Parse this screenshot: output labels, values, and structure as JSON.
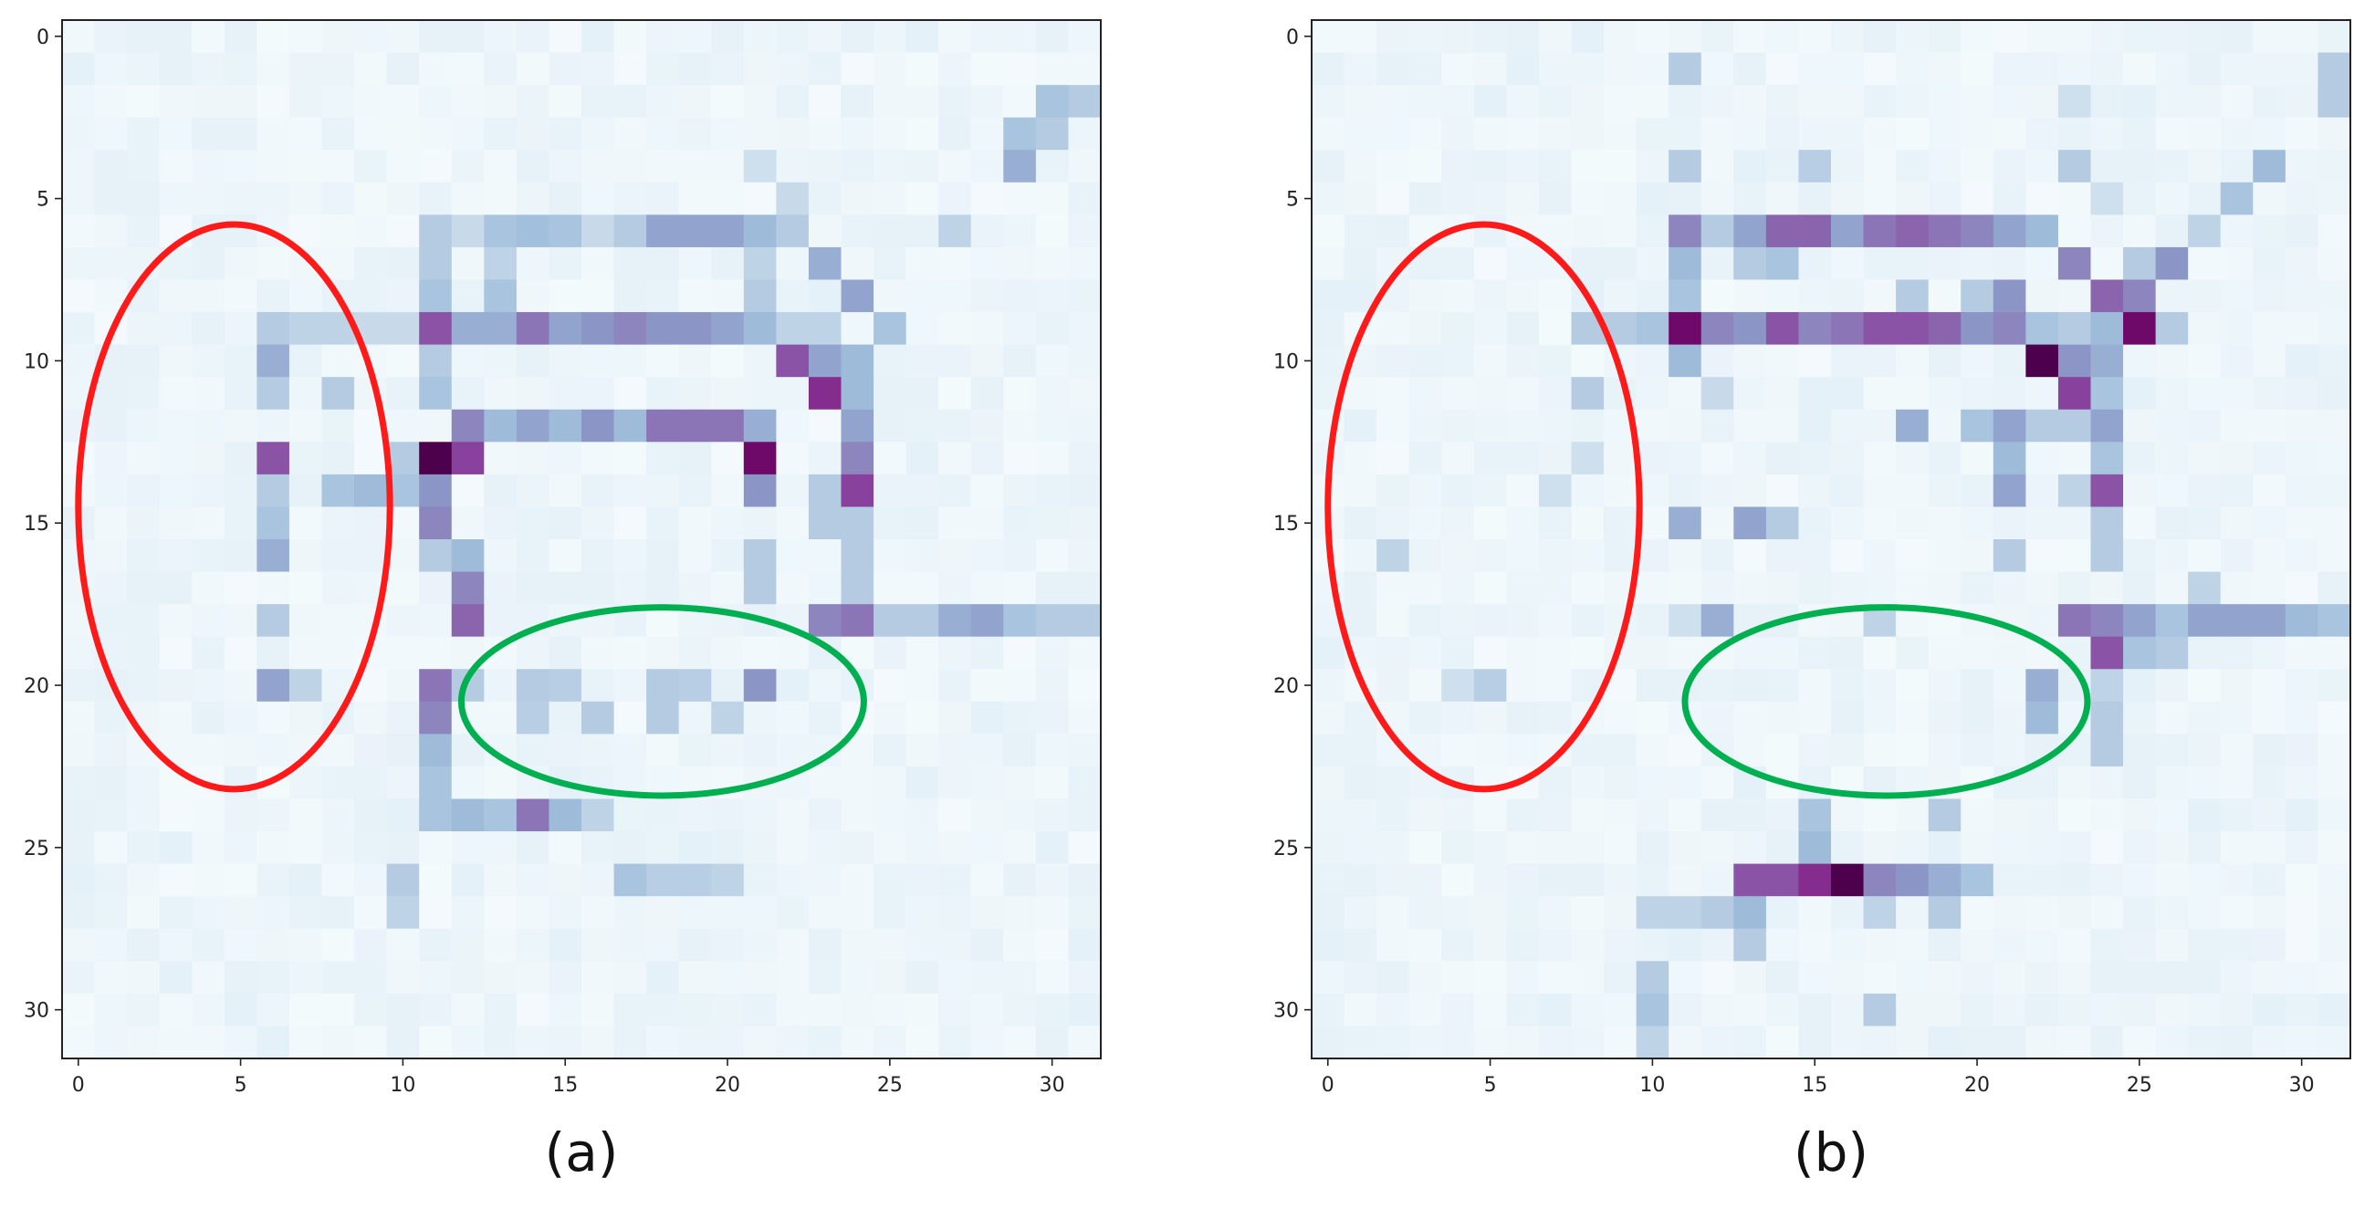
{
  "chart_data": [
    {
      "type": "heatmap",
      "panel_label": "(a)",
      "grid_size": [
        32,
        32
      ],
      "colormap": "BuPu",
      "value_range": [
        0,
        1
      ],
      "background_level": 0.06,
      "x_ticks": [
        0,
        5,
        10,
        15,
        20,
        25,
        30
      ],
      "y_ticks": [
        0,
        5,
        10,
        15,
        20,
        25,
        30
      ],
      "xlim": [
        -0.5,
        31.5
      ],
      "ylim": [
        31.5,
        -0.5
      ],
      "cells": [
        [
          30,
          2,
          0.35
        ],
        [
          31,
          2,
          0.3
        ],
        [
          29,
          3,
          0.35
        ],
        [
          29,
          4,
          0.45
        ],
        [
          30,
          3,
          0.3
        ],
        [
          21,
          4,
          0.2
        ],
        [
          22,
          5,
          0.22
        ],
        [
          27,
          6,
          0.25
        ],
        [
          11,
          6,
          0.3
        ],
        [
          12,
          6,
          0.22
        ],
        [
          13,
          6,
          0.35
        ],
        [
          14,
          6,
          0.38
        ],
        [
          15,
          6,
          0.35
        ],
        [
          16,
          6,
          0.22
        ],
        [
          17,
          6,
          0.3
        ],
        [
          18,
          6,
          0.5
        ],
        [
          19,
          6,
          0.5
        ],
        [
          20,
          6,
          0.5
        ],
        [
          21,
          6,
          0.4
        ],
        [
          22,
          6,
          0.3
        ],
        [
          23,
          7,
          0.45
        ],
        [
          24,
          8,
          0.5
        ],
        [
          11,
          7,
          0.3
        ],
        [
          11,
          8,
          0.35
        ],
        [
          13,
          7,
          0.25
        ],
        [
          13,
          8,
          0.35
        ],
        [
          21,
          7,
          0.25
        ],
        [
          21,
          8,
          0.3
        ],
        [
          6,
          9,
          0.3
        ],
        [
          7,
          9,
          0.25
        ],
        [
          8,
          9,
          0.25
        ],
        [
          9,
          9,
          0.22
        ],
        [
          10,
          9,
          0.22
        ],
        [
          11,
          9,
          0.75
        ],
        [
          12,
          9,
          0.45
        ],
        [
          13,
          9,
          0.45
        ],
        [
          14,
          9,
          0.65
        ],
        [
          15,
          9,
          0.5
        ],
        [
          16,
          9,
          0.55
        ],
        [
          17,
          9,
          0.6
        ],
        [
          18,
          9,
          0.55
        ],
        [
          19,
          9,
          0.55
        ],
        [
          20,
          9,
          0.5
        ],
        [
          21,
          9,
          0.4
        ],
        [
          22,
          9,
          0.25
        ],
        [
          23,
          9,
          0.25
        ],
        [
          25,
          9,
          0.35
        ],
        [
          22,
          10,
          0.75
        ],
        [
          23,
          10,
          0.5
        ],
        [
          24,
          10,
          0.4
        ],
        [
          23,
          11,
          0.85
        ],
        [
          24,
          11,
          0.4
        ],
        [
          6,
          10,
          0.45
        ],
        [
          6,
          11,
          0.3
        ],
        [
          8,
          11,
          0.3
        ],
        [
          11,
          10,
          0.3
        ],
        [
          11,
          11,
          0.35
        ],
        [
          12,
          12,
          0.6
        ],
        [
          13,
          12,
          0.4
        ],
        [
          14,
          12,
          0.5
        ],
        [
          15,
          12,
          0.4
        ],
        [
          16,
          12,
          0.55
        ],
        [
          17,
          12,
          0.4
        ],
        [
          18,
          12,
          0.65
        ],
        [
          19,
          12,
          0.65
        ],
        [
          20,
          12,
          0.65
        ],
        [
          21,
          12,
          0.45
        ],
        [
          24,
          12,
          0.5
        ],
        [
          6,
          13,
          0.75
        ],
        [
          10,
          13,
          0.3
        ],
        [
          11,
          13,
          1.0
        ],
        [
          12,
          13,
          0.8
        ],
        [
          21,
          13,
          0.95
        ],
        [
          24,
          13,
          0.6
        ],
        [
          8,
          14,
          0.35
        ],
        [
          9,
          14,
          0.4
        ],
        [
          10,
          14,
          0.35
        ],
        [
          11,
          14,
          0.55
        ],
        [
          21,
          14,
          0.55
        ],
        [
          24,
          14,
          0.8
        ],
        [
          6,
          14,
          0.3
        ],
        [
          6,
          15,
          0.35
        ],
        [
          11,
          15,
          0.6
        ],
        [
          6,
          16,
          0.45
        ],
        [
          11,
          16,
          0.3
        ],
        [
          12,
          16,
          0.4
        ],
        [
          12,
          17,
          0.6
        ],
        [
          12,
          18,
          0.7
        ],
        [
          6,
          18,
          0.3
        ],
        [
          21,
          16,
          0.3
        ],
        [
          21,
          17,
          0.3
        ],
        [
          23,
          18,
          0.6
        ],
        [
          24,
          18,
          0.65
        ],
        [
          25,
          18,
          0.3
        ],
        [
          26,
          18,
          0.3
        ],
        [
          27,
          18,
          0.45
        ],
        [
          28,
          18,
          0.5
        ],
        [
          29,
          18,
          0.35
        ],
        [
          30,
          18,
          0.3
        ],
        [
          31,
          18,
          0.3
        ],
        [
          6,
          20,
          0.5
        ],
        [
          7,
          20,
          0.25
        ],
        [
          11,
          20,
          0.65
        ],
        [
          12,
          20,
          0.3
        ],
        [
          21,
          20,
          0.55
        ],
        [
          11,
          21,
          0.6
        ],
        [
          11,
          22,
          0.4
        ],
        [
          11,
          23,
          0.35
        ],
        [
          11,
          24,
          0.35
        ],
        [
          12,
          24,
          0.4
        ],
        [
          13,
          24,
          0.35
        ],
        [
          14,
          24,
          0.65
        ],
        [
          15,
          24,
          0.4
        ],
        [
          16,
          24,
          0.25
        ],
        [
          14,
          20,
          0.3
        ],
        [
          15,
          20,
          0.28
        ],
        [
          18,
          20,
          0.3
        ],
        [
          19,
          20,
          0.28
        ],
        [
          14,
          21,
          0.28
        ],
        [
          16,
          21,
          0.3
        ],
        [
          18,
          21,
          0.3
        ],
        [
          20,
          21,
          0.25
        ],
        [
          17,
          26,
          0.35
        ],
        [
          18,
          26,
          0.28
        ],
        [
          19,
          26,
          0.28
        ],
        [
          20,
          26,
          0.25
        ],
        [
          10,
          26,
          0.3
        ],
        [
          10,
          27,
          0.25
        ],
        [
          23,
          14,
          0.3
        ],
        [
          23,
          15,
          0.3
        ],
        [
          24,
          15,
          0.3
        ],
        [
          24,
          16,
          0.3
        ],
        [
          24,
          17,
          0.3
        ]
      ],
      "annotations": [
        {
          "shape": "ellipse",
          "color": "#ff1a1a",
          "center": [
            4.8,
            14.5
          ],
          "radius": [
            4.8,
            8.7
          ]
        },
        {
          "shape": "ellipse",
          "color": "#00b050",
          "center": [
            18.0,
            20.5
          ],
          "radius": [
            6.2,
            2.9
          ]
        }
      ]
    },
    {
      "type": "heatmap",
      "panel_label": "(b)",
      "grid_size": [
        32,
        32
      ],
      "colormap": "BuPu",
      "value_range": [
        0,
        1
      ],
      "background_level": 0.06,
      "x_ticks": [
        0,
        5,
        10,
        15,
        20,
        25,
        30
      ],
      "y_ticks": [
        0,
        5,
        10,
        15,
        20,
        25,
        30
      ],
      "xlim": [
        -0.5,
        31.5
      ],
      "ylim": [
        31.5,
        -0.5
      ],
      "cells": [
        [
          31,
          1,
          0.3
        ],
        [
          31,
          2,
          0.3
        ],
        [
          23,
          2,
          0.2
        ],
        [
          29,
          4,
          0.4
        ],
        [
          28,
          5,
          0.35
        ],
        [
          27,
          6,
          0.25
        ],
        [
          11,
          1,
          0.3
        ],
        [
          11,
          4,
          0.3
        ],
        [
          15,
          4,
          0.28
        ],
        [
          23,
          4,
          0.3
        ],
        [
          24,
          5,
          0.2
        ],
        [
          11,
          6,
          0.6
        ],
        [
          12,
          6,
          0.3
        ],
        [
          13,
          6,
          0.5
        ],
        [
          14,
          6,
          0.7
        ],
        [
          15,
          6,
          0.7
        ],
        [
          16,
          6,
          0.5
        ],
        [
          17,
          6,
          0.65
        ],
        [
          18,
          6,
          0.7
        ],
        [
          19,
          6,
          0.65
        ],
        [
          20,
          6,
          0.6
        ],
        [
          21,
          6,
          0.5
        ],
        [
          22,
          6,
          0.4
        ],
        [
          11,
          7,
          0.4
        ],
        [
          13,
          7,
          0.3
        ],
        [
          14,
          7,
          0.35
        ],
        [
          23,
          7,
          0.6
        ],
        [
          25,
          7,
          0.3
        ],
        [
          26,
          7,
          0.55
        ],
        [
          11,
          8,
          0.35
        ],
        [
          21,
          8,
          0.55
        ],
        [
          24,
          8,
          0.7
        ],
        [
          25,
          8,
          0.6
        ],
        [
          18,
          8,
          0.3
        ],
        [
          20,
          8,
          0.3
        ],
        [
          8,
          9,
          0.3
        ],
        [
          9,
          9,
          0.3
        ],
        [
          10,
          9,
          0.35
        ],
        [
          11,
          9,
          0.95
        ],
        [
          12,
          9,
          0.6
        ],
        [
          13,
          9,
          0.55
        ],
        [
          14,
          9,
          0.75
        ],
        [
          15,
          9,
          0.6
        ],
        [
          16,
          9,
          0.65
        ],
        [
          17,
          9,
          0.75
        ],
        [
          18,
          9,
          0.75
        ],
        [
          19,
          9,
          0.7
        ],
        [
          20,
          9,
          0.55
        ],
        [
          21,
          9,
          0.6
        ],
        [
          22,
          9,
          0.35
        ],
        [
          23,
          9,
          0.3
        ],
        [
          24,
          9,
          0.4
        ],
        [
          25,
          9,
          0.95
        ],
        [
          26,
          9,
          0.3
        ],
        [
          11,
          10,
          0.4
        ],
        [
          22,
          10,
          1.0
        ],
        [
          23,
          10,
          0.55
        ],
        [
          24,
          10,
          0.45
        ],
        [
          23,
          11,
          0.8
        ],
        [
          24,
          11,
          0.35
        ],
        [
          8,
          11,
          0.3
        ],
        [
          12,
          11,
          0.22
        ],
        [
          18,
          12,
          0.45
        ],
        [
          20,
          12,
          0.35
        ],
        [
          21,
          12,
          0.5
        ],
        [
          24,
          12,
          0.5
        ],
        [
          22,
          12,
          0.3
        ],
        [
          23,
          12,
          0.3
        ],
        [
          21,
          13,
          0.4
        ],
        [
          24,
          13,
          0.35
        ],
        [
          21,
          14,
          0.5
        ],
        [
          24,
          14,
          0.75
        ],
        [
          23,
          14,
          0.25
        ],
        [
          11,
          15,
          0.45
        ],
        [
          13,
          15,
          0.5
        ],
        [
          14,
          15,
          0.3
        ],
        [
          24,
          15,
          0.3
        ],
        [
          24,
          16,
          0.3
        ],
        [
          21,
          16,
          0.3
        ],
        [
          11,
          18,
          0.2
        ],
        [
          12,
          18,
          0.45
        ],
        [
          17,
          18,
          0.25
        ],
        [
          23,
          18,
          0.65
        ],
        [
          24,
          18,
          0.6
        ],
        [
          25,
          18,
          0.5
        ],
        [
          26,
          18,
          0.35
        ],
        [
          27,
          18,
          0.5
        ],
        [
          28,
          18,
          0.5
        ],
        [
          29,
          18,
          0.5
        ],
        [
          30,
          18,
          0.4
        ],
        [
          31,
          18,
          0.35
        ],
        [
          27,
          17,
          0.25
        ],
        [
          24,
          19,
          0.75
        ],
        [
          25,
          19,
          0.35
        ],
        [
          26,
          19,
          0.3
        ],
        [
          22,
          20,
          0.45
        ],
        [
          22,
          21,
          0.4
        ],
        [
          24,
          20,
          0.25
        ],
        [
          24,
          21,
          0.3
        ],
        [
          24,
          22,
          0.3
        ],
        [
          4,
          20,
          0.2
        ],
        [
          5,
          20,
          0.28
        ],
        [
          2,
          16,
          0.25
        ],
        [
          8,
          13,
          0.2
        ],
        [
          7,
          14,
          0.2
        ],
        [
          15,
          24,
          0.35
        ],
        [
          15,
          25,
          0.4
        ],
        [
          19,
          24,
          0.3
        ],
        [
          13,
          26,
          0.75
        ],
        [
          14,
          26,
          0.75
        ],
        [
          15,
          26,
          0.85
        ],
        [
          16,
          26,
          1.0
        ],
        [
          17,
          26,
          0.6
        ],
        [
          18,
          26,
          0.55
        ],
        [
          19,
          26,
          0.45
        ],
        [
          20,
          26,
          0.35
        ],
        [
          10,
          27,
          0.25
        ],
        [
          11,
          27,
          0.25
        ],
        [
          12,
          27,
          0.3
        ],
        [
          13,
          27,
          0.4
        ],
        [
          13,
          28,
          0.3
        ],
        [
          17,
          27,
          0.25
        ],
        [
          19,
          27,
          0.3
        ],
        [
          10,
          29,
          0.3
        ],
        [
          10,
          30,
          0.35
        ],
        [
          17,
          30,
          0.3
        ],
        [
          10,
          31,
          0.25
        ]
      ],
      "annotations": [
        {
          "shape": "ellipse",
          "color": "#ff1a1a",
          "center": [
            4.8,
            14.5
          ],
          "radius": [
            4.8,
            8.7
          ]
        },
        {
          "shape": "ellipse",
          "color": "#00b050",
          "center": [
            17.2,
            20.5
          ],
          "radius": [
            6.2,
            2.9
          ]
        }
      ]
    }
  ]
}
